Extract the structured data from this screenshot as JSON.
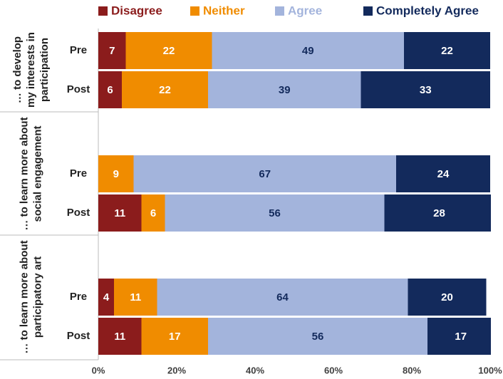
{
  "chart_data": {
    "type": "stacked-bar-horizontal",
    "group_labels": [
      [
        "… to develop",
        "my interests in",
        "participation"
      ],
      [
        "… to learn more about",
        "social engagement"
      ],
      [
        "… to learn more about",
        "participatory art"
      ]
    ],
    "categories": [
      "Pre",
      "Post",
      "Pre",
      "Post",
      "Pre",
      "Post"
    ],
    "series": [
      {
        "name": "Disagree",
        "color": "#8b1c1c",
        "values": [
          7,
          6,
          null,
          11,
          4,
          11
        ]
      },
      {
        "name": "Neither",
        "color": "#f08c00",
        "values": [
          22,
          22,
          9,
          6,
          11,
          17
        ]
      },
      {
        "name": "Agree",
        "color": "#a3b4dc",
        "values": [
          49,
          39,
          67,
          56,
          64,
          56
        ]
      },
      {
        "name": "Completely Agree",
        "color": "#132a5c",
        "values": [
          22,
          33,
          24,
          28,
          20,
          17
        ]
      }
    ],
    "xlim": [
      0,
      100
    ],
    "xticks": [
      {
        "value": 0,
        "label": "0%"
      },
      {
        "value": 20,
        "label": "20%"
      },
      {
        "value": 40,
        "label": "40%"
      },
      {
        "value": 60,
        "label": "60%"
      },
      {
        "value": 80,
        "label": "80%"
      },
      {
        "value": 100,
        "label": "100%"
      }
    ],
    "legend": "top"
  }
}
